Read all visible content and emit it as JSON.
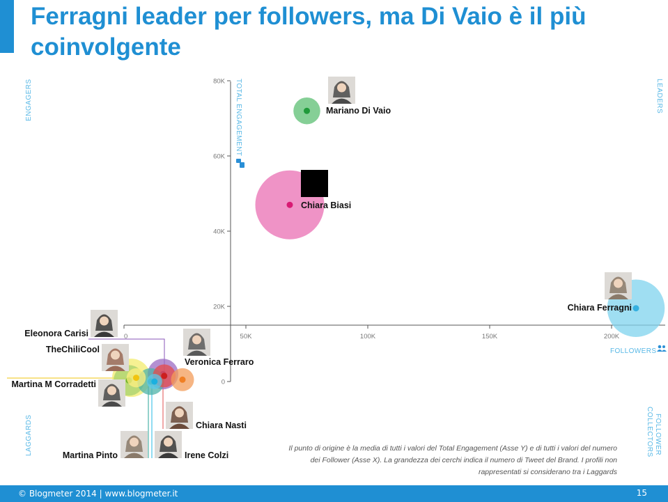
{
  "slide": {
    "title": "Ferragni leader per followers, ma Di Vaio è il più coinvolgente",
    "accent_color": "#1f8fd3",
    "footer_text": "© Blogmeter 2014 | www.blogmeter.it",
    "page_number": "15",
    "note": "Il punto di origine è la media di tutti i valori del Total Engagement (Asse Y) e di tutti i valori del numero dei Follower (Asse X). La grandezza dei cerchi indica il numero di Tweet del  Brand. I profili non rappresentati si considerano tra i Laggards"
  },
  "chart_data": {
    "type": "scatter",
    "bubble": true,
    "xlabel": "FOLLOWERS",
    "ylabel": "TOTAL ENGAGEMENT",
    "x_ticks": [
      0,
      50000,
      100000,
      150000,
      200000
    ],
    "x_tick_labels": [
      "0",
      "50K",
      "100K",
      "150K",
      "200K"
    ],
    "y_ticks": [
      0,
      20000,
      40000,
      60000,
      80000
    ],
    "y_tick_labels": [
      "0",
      "20K",
      "40K",
      "60K",
      "80K"
    ],
    "xlim": [
      0,
      220000
    ],
    "ylim": [
      0,
      80000
    ],
    "quadrant_labels": {
      "top_left": "ENGAGERS",
      "top_right": "LEADERS",
      "bottom_left": "LAGGARDS",
      "bottom_right_line1": "FOLLOWER",
      "bottom_right_line2": "COLLECTORS"
    },
    "points": [
      {
        "name": "Mariano Di Vaio",
        "x": 75000,
        "y": 72000,
        "size": 7,
        "color": "#5cbf73",
        "dot": "#1f9a3a"
      },
      {
        "name": "Chiara Biasi",
        "x": 68000,
        "y": 47000,
        "size": 18,
        "color": "#ea6fb3",
        "dot": "#d81a73"
      },
      {
        "name": "Chiara Ferragni",
        "x": 210000,
        "y": 19500,
        "size": 15,
        "color": "#7fd3ee",
        "dot": "#35b0e0"
      },
      {
        "name": "Eleonora Carisi",
        "x": 3000,
        "y": 1000,
        "size": 10,
        "color": "#f3ec6d",
        "dot": "#e0cf22"
      },
      {
        "name": "TheChiliCool",
        "x": 2000,
        "y": 300,
        "size": 8,
        "color": "#a5d06d",
        "dot": "#6caf2a"
      },
      {
        "name": "Veronica Ferraro",
        "x": 16000,
        "y": 2000,
        "size": 8,
        "color": "#9b6bc3",
        "dot": "#7b3fb0"
      },
      {
        "name": "Martina M Corradetti",
        "x": 5000,
        "y": 1000,
        "size": 5,
        "color": "#ffef80",
        "dot": "#f1c40f"
      },
      {
        "name": "Chiara Nasti",
        "x": 16500,
        "y": 1500,
        "size": 6,
        "color": "#e64a4a",
        "dot": "#cc1f1f"
      },
      {
        "name": "Martina Pinto",
        "x": 11000,
        "y": 0,
        "size": 7,
        "color": "#4fb3a8",
        "dot": "#239c8e"
      },
      {
        "name": "Irene Colzi",
        "x": 12500,
        "y": 0,
        "size": 4,
        "color": "#5bc8e8",
        "dot": "#1ab0e0"
      },
      {
        "name": "",
        "x": 24000,
        "y": 500,
        "size": 6,
        "color": "#f39c5a",
        "dot": "#f07f24"
      }
    ]
  }
}
